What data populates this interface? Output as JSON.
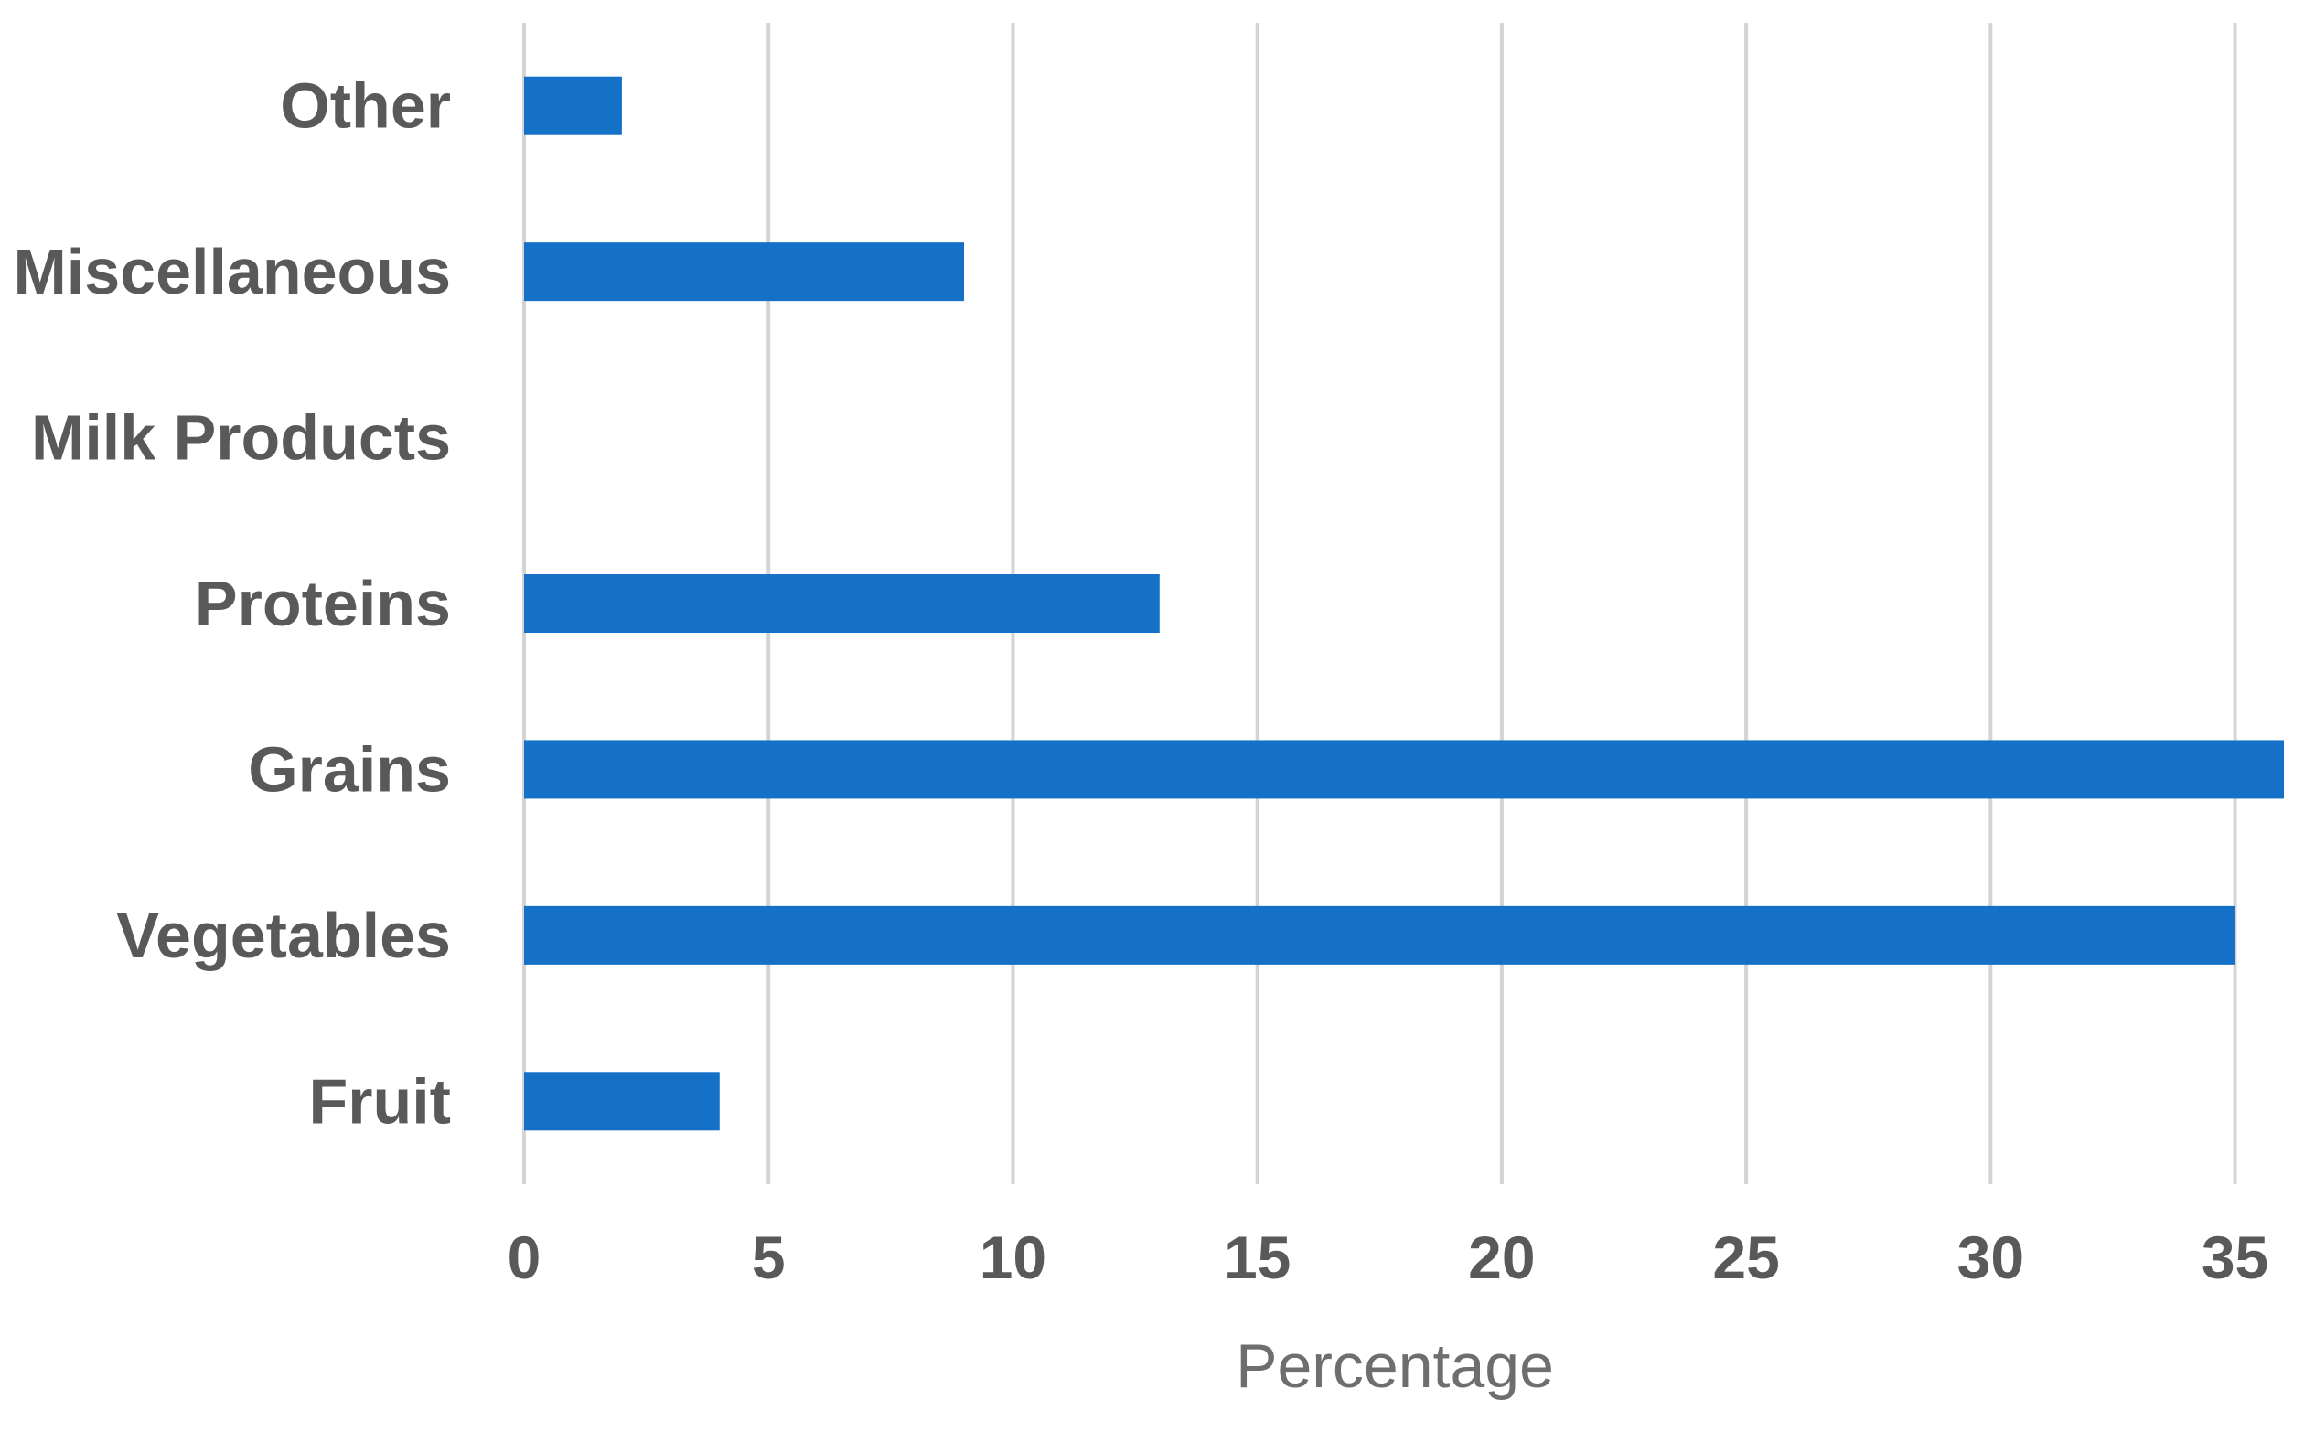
{
  "chart_data": {
    "type": "bar",
    "orientation": "horizontal",
    "categories": [
      "Fruit",
      "Vegetables",
      "Grains",
      "Proteins",
      "Milk Products",
      "Miscellaneous",
      "Other"
    ],
    "values": [
      4,
      35,
      36,
      13,
      0,
      9,
      2
    ],
    "xlabel": "Percentage",
    "ylabel": "",
    "xlim": [
      0,
      36
    ],
    "xticks": [
      0,
      5,
      10,
      15,
      20,
      25,
      30,
      35
    ],
    "xtick_labels": [
      "0",
      "5",
      "10",
      "15",
      "20",
      "25",
      "30",
      "35"
    ],
    "grid": "vertical",
    "legend": "none",
    "colors": {
      "bar": "#1570c8",
      "grid": "#d4d4d4",
      "text": "#595959",
      "axis_title": "#6e6e6e",
      "background": "#ffffff"
    }
  }
}
